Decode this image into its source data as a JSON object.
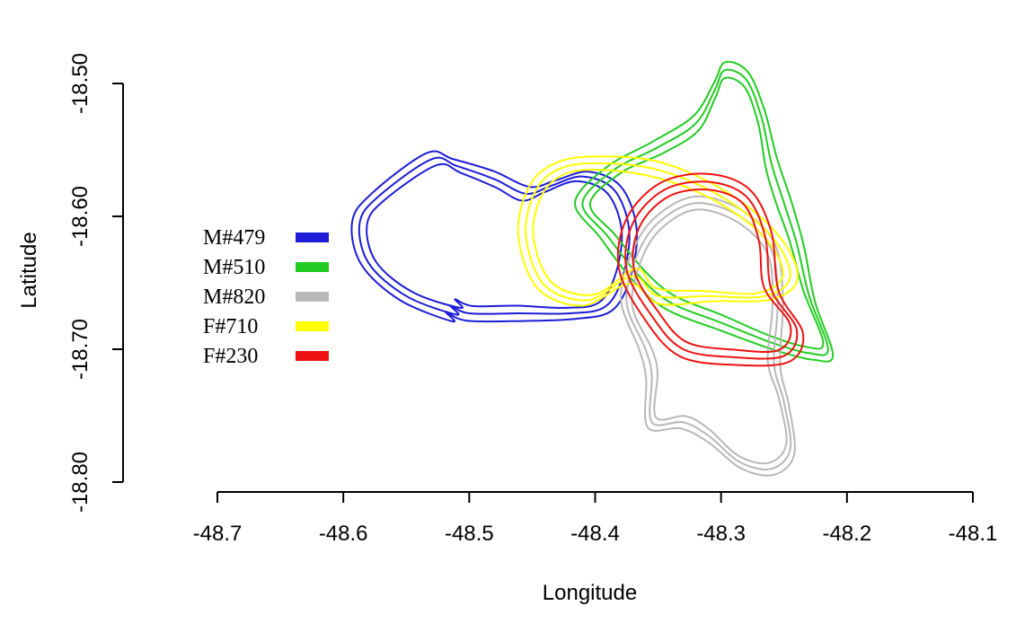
{
  "chart_data": {
    "type": "line",
    "title": "",
    "xlabel": "Longitude",
    "ylabel": "Latitude",
    "xlim": [
      -48.7,
      -48.1
    ],
    "ylim": [
      -18.8,
      -18.5
    ],
    "x_ticks": [
      {
        "value": -48.7,
        "label": "-48.7"
      },
      {
        "value": -48.6,
        "label": "-48.6"
      },
      {
        "value": -48.5,
        "label": "-48.5"
      },
      {
        "value": -48.4,
        "label": "-48.4"
      },
      {
        "value": -48.3,
        "label": "-48.3"
      },
      {
        "value": -48.2,
        "label": "-48.2"
      },
      {
        "value": -48.1,
        "label": "-48.1"
      }
    ],
    "y_ticks": [
      {
        "value": -18.5,
        "label": "-18.50"
      },
      {
        "value": -18.6,
        "label": "-18.60"
      },
      {
        "value": -18.7,
        "label": "-18.70"
      },
      {
        "value": -18.8,
        "label": "-18.80"
      }
    ],
    "legend_position": "left",
    "series": [
      {
        "name": "M#479",
        "color": "#1c1cd6",
        "contour_offsets": [
          -0.006,
          0,
          0.006
        ],
        "points": [
          [
            -48.53,
            -18.557
          ],
          [
            -48.51,
            -18.562
          ],
          [
            -48.48,
            -18.572
          ],
          [
            -48.455,
            -18.583
          ],
          [
            -48.435,
            -18.577
          ],
          [
            -48.41,
            -18.57
          ],
          [
            -48.385,
            -18.58
          ],
          [
            -48.373,
            -18.61
          ],
          [
            -48.378,
            -18.645
          ],
          [
            -48.392,
            -18.668
          ],
          [
            -48.42,
            -18.673
          ],
          [
            -48.46,
            -18.673
          ],
          [
            -48.5,
            -18.673
          ],
          [
            -48.515,
            -18.667
          ],
          [
            -48.51,
            -18.674
          ],
          [
            -48.55,
            -18.66
          ],
          [
            -48.58,
            -18.635
          ],
          [
            -48.587,
            -18.605
          ],
          [
            -48.572,
            -18.585
          ]
        ]
      },
      {
        "name": "M#510",
        "color": "#22cc22",
        "contour_offsets": [
          -0.006,
          0,
          0.006
        ],
        "points": [
          [
            -48.297,
            -18.49
          ],
          [
            -48.28,
            -18.497
          ],
          [
            -48.268,
            -18.525
          ],
          [
            -48.26,
            -18.56
          ],
          [
            -48.25,
            -18.59
          ],
          [
            -48.24,
            -18.62
          ],
          [
            -48.23,
            -18.66
          ],
          [
            -48.215,
            -18.7
          ],
          [
            -48.23,
            -18.703
          ],
          [
            -48.26,
            -18.695
          ],
          [
            -48.3,
            -18.68
          ],
          [
            -48.34,
            -18.665
          ],
          [
            -48.365,
            -18.645
          ],
          [
            -48.39,
            -18.615
          ],
          [
            -48.41,
            -18.59
          ],
          [
            -48.385,
            -18.565
          ],
          [
            -48.35,
            -18.548
          ],
          [
            -48.32,
            -18.53
          ],
          [
            -48.305,
            -18.505
          ]
        ]
      },
      {
        "name": "M#820",
        "color": "#b8b8b8",
        "contour_offsets": [
          -0.005,
          0,
          0.005
        ],
        "points": [
          [
            -48.32,
            -18.59
          ],
          [
            -48.285,
            -18.6
          ],
          [
            -48.26,
            -18.625
          ],
          [
            -48.255,
            -18.665
          ],
          [
            -48.258,
            -18.71
          ],
          [
            -48.25,
            -18.74
          ],
          [
            -48.245,
            -18.775
          ],
          [
            -48.26,
            -18.79
          ],
          [
            -48.285,
            -18.785
          ],
          [
            -48.31,
            -18.765
          ],
          [
            -48.33,
            -18.755
          ],
          [
            -48.355,
            -18.755
          ],
          [
            -48.355,
            -18.72
          ],
          [
            -48.36,
            -18.7
          ],
          [
            -48.375,
            -18.665
          ],
          [
            -48.367,
            -18.63
          ],
          [
            -48.35,
            -18.605
          ]
        ]
      },
      {
        "name": "F#710",
        "color": "#ffff00",
        "contour_offsets": [
          -0.006,
          0,
          0.006
        ],
        "points": [
          [
            -48.4,
            -18.56
          ],
          [
            -48.35,
            -18.565
          ],
          [
            -48.3,
            -18.585
          ],
          [
            -48.26,
            -18.615
          ],
          [
            -48.245,
            -18.645
          ],
          [
            -48.265,
            -18.66
          ],
          [
            -48.31,
            -18.66
          ],
          [
            -48.35,
            -18.66
          ],
          [
            -48.37,
            -18.645
          ],
          [
            -48.405,
            -18.663
          ],
          [
            -48.44,
            -18.652
          ],
          [
            -48.455,
            -18.615
          ],
          [
            -48.448,
            -18.582
          ],
          [
            -48.43,
            -18.565
          ]
        ]
      },
      {
        "name": "F#230",
        "color": "#ee1111",
        "contour_offsets": [
          -0.006,
          0,
          0.006
        ],
        "points": [
          [
            -48.31,
            -18.574
          ],
          [
            -48.28,
            -18.585
          ],
          [
            -48.265,
            -18.615
          ],
          [
            -48.26,
            -18.655
          ],
          [
            -48.24,
            -18.685
          ],
          [
            -48.25,
            -18.705
          ],
          [
            -48.29,
            -18.706
          ],
          [
            -48.33,
            -18.7
          ],
          [
            -48.355,
            -18.675
          ],
          [
            -48.375,
            -18.64
          ],
          [
            -48.37,
            -18.605
          ],
          [
            -48.345,
            -18.58
          ]
        ]
      }
    ]
  }
}
